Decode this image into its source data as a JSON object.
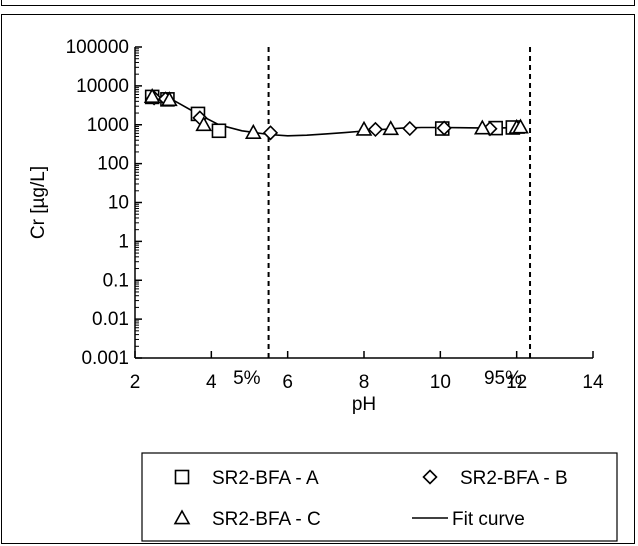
{
  "chart_data": {
    "type": "scatter",
    "title": "",
    "xlabel": "pH",
    "ylabel": "Cr [µg/L]",
    "xlim": [
      2,
      14
    ],
    "ylim": [
      0.001,
      100000
    ],
    "y_scale": "log",
    "grid": false,
    "x_ticks": [
      "2",
      "4",
      "6",
      "8",
      "10",
      "12",
      "14"
    ],
    "y_ticks": [
      "0.001",
      "0.01",
      "0.1",
      "1",
      "10",
      "100",
      "1000",
      "10000",
      "100000"
    ],
    "legend_position": "bottom",
    "series": [
      {
        "name": "SR2-BFA - A",
        "marker": "square",
        "points": [
          [
            2.45,
            5200
          ],
          [
            2.85,
            4500
          ],
          [
            3.65,
            1900
          ],
          [
            4.2,
            700
          ],
          [
            10.05,
            800
          ],
          [
            11.45,
            820
          ],
          [
            11.9,
            850
          ]
        ]
      },
      {
        "name": "SR2-BFA - B",
        "marker": "diamond",
        "points": [
          [
            2.5,
            4900
          ],
          [
            2.8,
            4600
          ],
          [
            3.7,
            1500
          ],
          [
            5.55,
            620
          ],
          [
            8.3,
            760
          ],
          [
            9.2,
            800
          ],
          [
            10.1,
            820
          ],
          [
            11.3,
            790
          ]
        ]
      },
      {
        "name": "SR2-BFA - C",
        "marker": "triangle",
        "points": [
          [
            2.45,
            5300
          ],
          [
            2.9,
            4400
          ],
          [
            3.8,
            1000
          ],
          [
            5.1,
            630
          ],
          [
            8.0,
            760
          ],
          [
            8.7,
            790
          ],
          [
            11.1,
            820
          ],
          [
            12.0,
            850
          ],
          [
            12.1,
            870
          ]
        ]
      },
      {
        "name": "Fit curve",
        "marker": "line",
        "points": [
          [
            2.45,
            5300
          ],
          [
            3.0,
            4300
          ],
          [
            3.6,
            2000
          ],
          [
            4.2,
            1000
          ],
          [
            4.8,
            700
          ],
          [
            5.5,
            560
          ],
          [
            6.0,
            520
          ],
          [
            6.5,
            540
          ],
          [
            7.0,
            580
          ],
          [
            7.5,
            630
          ],
          [
            8.0,
            690
          ],
          [
            8.5,
            760
          ],
          [
            9.0,
            820
          ],
          [
            9.5,
            850
          ],
          [
            10.0,
            850
          ],
          [
            10.5,
            840
          ],
          [
            11.0,
            830
          ],
          [
            11.5,
            830
          ],
          [
            12.0,
            840
          ]
        ]
      }
    ],
    "reference_lines": [
      {
        "x": 5.5,
        "label": "5%"
      },
      {
        "x": 12.35,
        "label": "95%"
      }
    ],
    "colors": {
      "ink": "#000000",
      "background": "#ffffff"
    }
  }
}
